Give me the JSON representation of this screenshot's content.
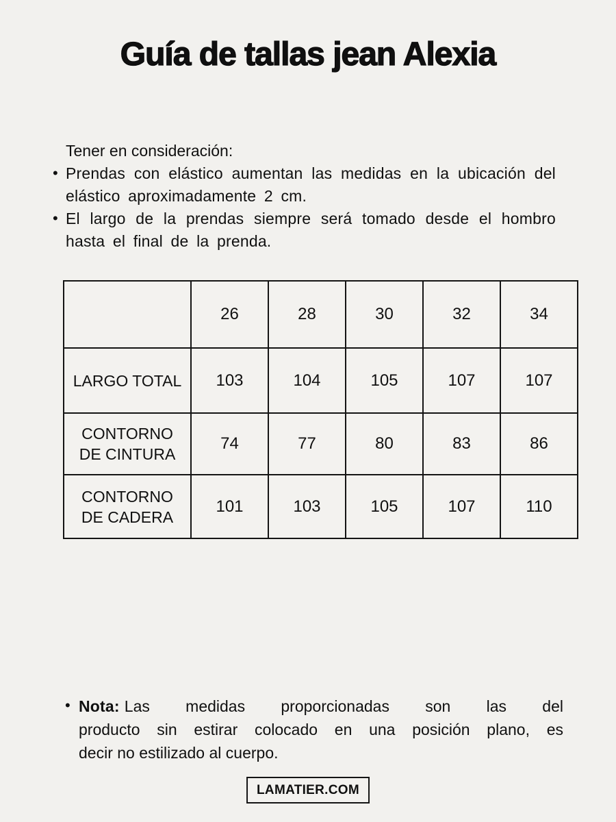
{
  "page": {
    "background_color": "#f2f1ee",
    "text_color": "#101010",
    "title": "Guía de tallas jean Alexia"
  },
  "considerations": {
    "intro": "Tener en consideración:",
    "bullet_glyph": "•",
    "items": [
      "Prendas con elástico aumentan las medidas en la ubicación del elástico aproximadamente 2 cm.",
      "El largo de la prendas siempre será tomado desde el hombro hasta el final de la prenda."
    ]
  },
  "size_table": {
    "columns": [
      "",
      "26",
      "28",
      "30",
      "32",
      "34"
    ],
    "rows": [
      {
        "label": "LARGO TOTAL",
        "label_lines": [
          "LARGO TOTAL"
        ],
        "values": [
          "103",
          "104",
          "105",
          "107",
          "107"
        ]
      },
      {
        "label": "CONTORNO DE CINTURA",
        "label_lines": [
          "CONTORNO",
          "DE CINTURA"
        ],
        "values": [
          "74",
          "77",
          "80",
          "83",
          "86"
        ]
      },
      {
        "label": "CONTORNO DE CADERA",
        "label_lines": [
          "CONTORNO",
          "DE CADERA"
        ],
        "values": [
          "101",
          "103",
          "105",
          "107",
          "110"
        ]
      }
    ]
  },
  "note": {
    "bullet_glyph": "•",
    "label": "Nota:",
    "line1_rest": "Las medidas proporcionadas son las del",
    "line2": "producto sin estirar colocado en una posición plano, es",
    "line3": "decir no estilizado al cuerpo."
  },
  "footer": {
    "brand": "LAMATIER.COM"
  }
}
